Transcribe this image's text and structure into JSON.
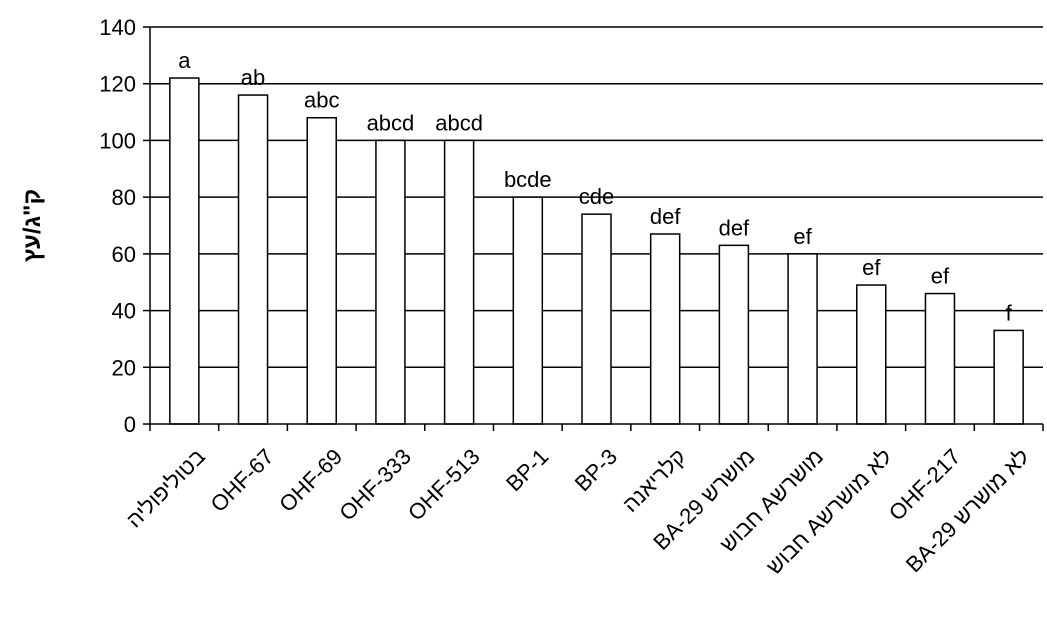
{
  "chart_data": {
    "type": "bar",
    "title": "",
    "xlabel": "",
    "ylabel": "ק\"ג/עץ",
    "ylim": [
      0,
      140
    ],
    "yticks": [
      0,
      20,
      40,
      60,
      80,
      100,
      120,
      140
    ],
    "grid": true,
    "legend": "none",
    "bar_fill": "#ffffff",
    "bar_stroke": "#000000",
    "categories": [
      "בטוליפוליה",
      "OHF-67",
      "OHF-69",
      "OHF-333",
      "OHF-513",
      "BP-1",
      "BP-3",
      "קלריאנה",
      "BA-29 מושרש",
      "חבוש Aמושרש",
      "חבוש Aלא מושרש",
      "OHF-217",
      "BA-29 לא מושרש"
    ],
    "values": [
      122,
      116,
      108,
      100,
      100,
      80,
      74,
      67,
      63,
      60,
      49,
      46,
      33
    ],
    "significance_letters": [
      "a",
      "ab",
      "abc",
      "abcd",
      "abcd",
      "bcde",
      "cde",
      "def",
      "def",
      "ef",
      "ef",
      "ef",
      "f"
    ]
  }
}
